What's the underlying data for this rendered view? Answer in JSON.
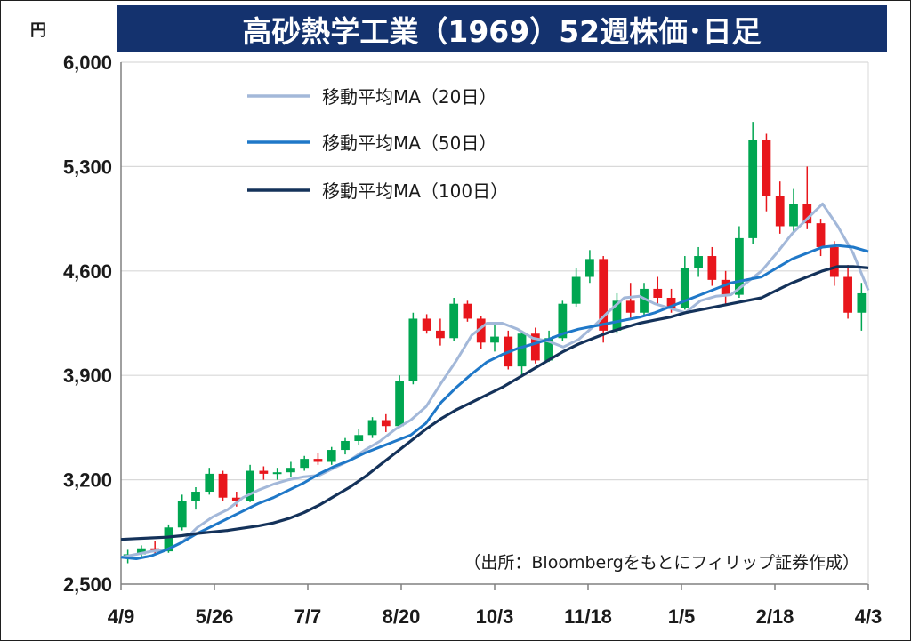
{
  "title": "高砂熱学工業（1969）52週株価･日足",
  "y_unit": "円",
  "source_note": "（出所：Bloombergをもとにフィリップ証券作成）",
  "colors": {
    "title_bg": "#14326e",
    "up": "#00a651",
    "down": "#e8161c",
    "ma20": "#a3b8d9",
    "ma50": "#1f78c8",
    "ma100": "#14325a",
    "grid": "#d9d9d9"
  },
  "chart_data": {
    "type": "line",
    "title": "高砂熱学工業（1969）52週株価･日足",
    "ylim": [
      2500,
      6000
    ],
    "yticks": [
      2500,
      3200,
      3900,
      4600,
      5300,
      6000
    ],
    "ytick_labels": [
      "2,500",
      "3,200",
      "3,900",
      "4,600",
      "5,300",
      "6,000"
    ],
    "x_tick_labels": [
      "4/9",
      "5/26",
      "7/7",
      "8/20",
      "10/3",
      "11/18",
      "1/5",
      "2/18",
      "4/3"
    ],
    "grid": true,
    "legend": "top-left",
    "series": [
      {
        "name": "移動平均MA（20日）",
        "values": [
          2680,
          2700,
          2720,
          2730,
          2780,
          2880,
          2950,
          3000,
          3080,
          3130,
          3170,
          3200,
          3220,
          3230,
          3280,
          3330,
          3400,
          3460,
          3540,
          3600,
          3690,
          3850,
          4000,
          4170,
          4250,
          4250,
          4210,
          4150,
          4130,
          4090,
          4140,
          4230,
          4330,
          4420,
          4430,
          4380,
          4350,
          4320,
          4400,
          4430,
          4440,
          4520,
          4600,
          4720,
          4850,
          4950,
          5050,
          4900,
          4720,
          4470
        ]
      },
      {
        "name": "移動平均MA（50日）",
        "values": [
          2680,
          2670,
          2690,
          2730,
          2780,
          2840,
          2890,
          2940,
          2990,
          3040,
          3080,
          3130,
          3180,
          3240,
          3290,
          3330,
          3380,
          3420,
          3460,
          3500,
          3580,
          3720,
          3820,
          3910,
          3990,
          4040,
          4080,
          4110,
          4140,
          4180,
          4210,
          4230,
          4250,
          4270,
          4290,
          4320,
          4360,
          4400,
          4440,
          4480,
          4520,
          4540,
          4560,
          4620,
          4680,
          4720,
          4760,
          4770,
          4760,
          4730
        ]
      },
      {
        "name": "移動平均MA（100日）",
        "values": [
          2800,
          2805,
          2810,
          2815,
          2825,
          2840,
          2850,
          2860,
          2875,
          2890,
          2910,
          2940,
          2980,
          3030,
          3090,
          3150,
          3220,
          3300,
          3380,
          3460,
          3540,
          3610,
          3670,
          3720,
          3770,
          3820,
          3880,
          3940,
          4000,
          4060,
          4110,
          4150,
          4190,
          4220,
          4250,
          4270,
          4290,
          4320,
          4340,
          4360,
          4380,
          4400,
          4420,
          4470,
          4520,
          4560,
          4600,
          4630,
          4630,
          4620
        ]
      }
    ],
    "candles": [
      {
        "o": 2680,
        "h": 2730,
        "l": 2640,
        "c": 2700
      },
      {
        "o": 2700,
        "h": 2760,
        "l": 2680,
        "c": 2740
      },
      {
        "o": 2740,
        "h": 2790,
        "l": 2700,
        "c": 2720
      },
      {
        "o": 2720,
        "h": 2900,
        "l": 2710,
        "c": 2880
      },
      {
        "o": 2880,
        "h": 3100,
        "l": 2860,
        "c": 3060
      },
      {
        "o": 3060,
        "h": 3150,
        "l": 3000,
        "c": 3120
      },
      {
        "o": 3120,
        "h": 3280,
        "l": 3100,
        "c": 3240
      },
      {
        "o": 3240,
        "h": 3260,
        "l": 3060,
        "c": 3080
      },
      {
        "o": 3080,
        "h": 3120,
        "l": 3020,
        "c": 3060
      },
      {
        "o": 3060,
        "h": 3300,
        "l": 3050,
        "c": 3260
      },
      {
        "o": 3260,
        "h": 3290,
        "l": 3200,
        "c": 3240
      },
      {
        "o": 3240,
        "h": 3280,
        "l": 3200,
        "c": 3250
      },
      {
        "o": 3250,
        "h": 3320,
        "l": 3220,
        "c": 3280
      },
      {
        "o": 3280,
        "h": 3360,
        "l": 3260,
        "c": 3340
      },
      {
        "o": 3340,
        "h": 3380,
        "l": 3300,
        "c": 3320
      },
      {
        "o": 3320,
        "h": 3420,
        "l": 3300,
        "c": 3400
      },
      {
        "o": 3400,
        "h": 3480,
        "l": 3370,
        "c": 3460
      },
      {
        "o": 3460,
        "h": 3540,
        "l": 3430,
        "c": 3500
      },
      {
        "o": 3500,
        "h": 3620,
        "l": 3480,
        "c": 3600
      },
      {
        "o": 3600,
        "h": 3640,
        "l": 3520,
        "c": 3560
      },
      {
        "o": 3560,
        "h": 3900,
        "l": 3550,
        "c": 3860
      },
      {
        "o": 3860,
        "h": 4320,
        "l": 3840,
        "c": 4280
      },
      {
        "o": 4280,
        "h": 4310,
        "l": 4180,
        "c": 4200
      },
      {
        "o": 4200,
        "h": 4280,
        "l": 4100,
        "c": 4150
      },
      {
        "o": 4150,
        "h": 4420,
        "l": 4130,
        "c": 4380
      },
      {
        "o": 4380,
        "h": 4400,
        "l": 4260,
        "c": 4280
      },
      {
        "o": 4280,
        "h": 4300,
        "l": 4080,
        "c": 4120
      },
      {
        "o": 4120,
        "h": 4250,
        "l": 4060,
        "c": 4160
      },
      {
        "o": 4160,
        "h": 4200,
        "l": 3940,
        "c": 3960
      },
      {
        "o": 3960,
        "h": 4200,
        "l": 3900,
        "c": 4180
      },
      {
        "o": 4180,
        "h": 4220,
        "l": 3980,
        "c": 4000
      },
      {
        "o": 4000,
        "h": 4200,
        "l": 3990,
        "c": 4150
      },
      {
        "o": 4150,
        "h": 4400,
        "l": 4130,
        "c": 4380
      },
      {
        "o": 4380,
        "h": 4620,
        "l": 4360,
        "c": 4560
      },
      {
        "o": 4560,
        "h": 4740,
        "l": 4520,
        "c": 4680
      },
      {
        "o": 4680,
        "h": 4700,
        "l": 4120,
        "c": 4200
      },
      {
        "o": 4200,
        "h": 4450,
        "l": 4180,
        "c": 4400
      },
      {
        "o": 4400,
        "h": 4520,
        "l": 4280,
        "c": 4320
      },
      {
        "o": 4320,
        "h": 4520,
        "l": 4300,
        "c": 4480
      },
      {
        "o": 4480,
        "h": 4560,
        "l": 4380,
        "c": 4420
      },
      {
        "o": 4420,
        "h": 4480,
        "l": 4320,
        "c": 4350
      },
      {
        "o": 4350,
        "h": 4700,
        "l": 4340,
        "c": 4620
      },
      {
        "o": 4620,
        "h": 4760,
        "l": 4560,
        "c": 4700
      },
      {
        "o": 4700,
        "h": 4760,
        "l": 4500,
        "c": 4540
      },
      {
        "o": 4540,
        "h": 4600,
        "l": 4380,
        "c": 4440
      },
      {
        "o": 4440,
        "h": 4900,
        "l": 4420,
        "c": 4820
      },
      {
        "o": 4820,
        "h": 5600,
        "l": 4780,
        "c": 5480
      },
      {
        "o": 5480,
        "h": 5520,
        "l": 5000,
        "c": 5100
      },
      {
        "o": 5100,
        "h": 5200,
        "l": 4850,
        "c": 4900
      },
      {
        "o": 4900,
        "h": 5150,
        "l": 4860,
        "c": 5050
      },
      {
        "o": 5050,
        "h": 5300,
        "l": 4880,
        "c": 4920
      },
      {
        "o": 4920,
        "h": 4950,
        "l": 4700,
        "c": 4760
      },
      {
        "o": 4760,
        "h": 4800,
        "l": 4500,
        "c": 4560
      },
      {
        "o": 4560,
        "h": 4640,
        "l": 4280,
        "c": 4320
      },
      {
        "o": 4320,
        "h": 4520,
        "l": 4200,
        "c": 4450
      }
    ]
  }
}
